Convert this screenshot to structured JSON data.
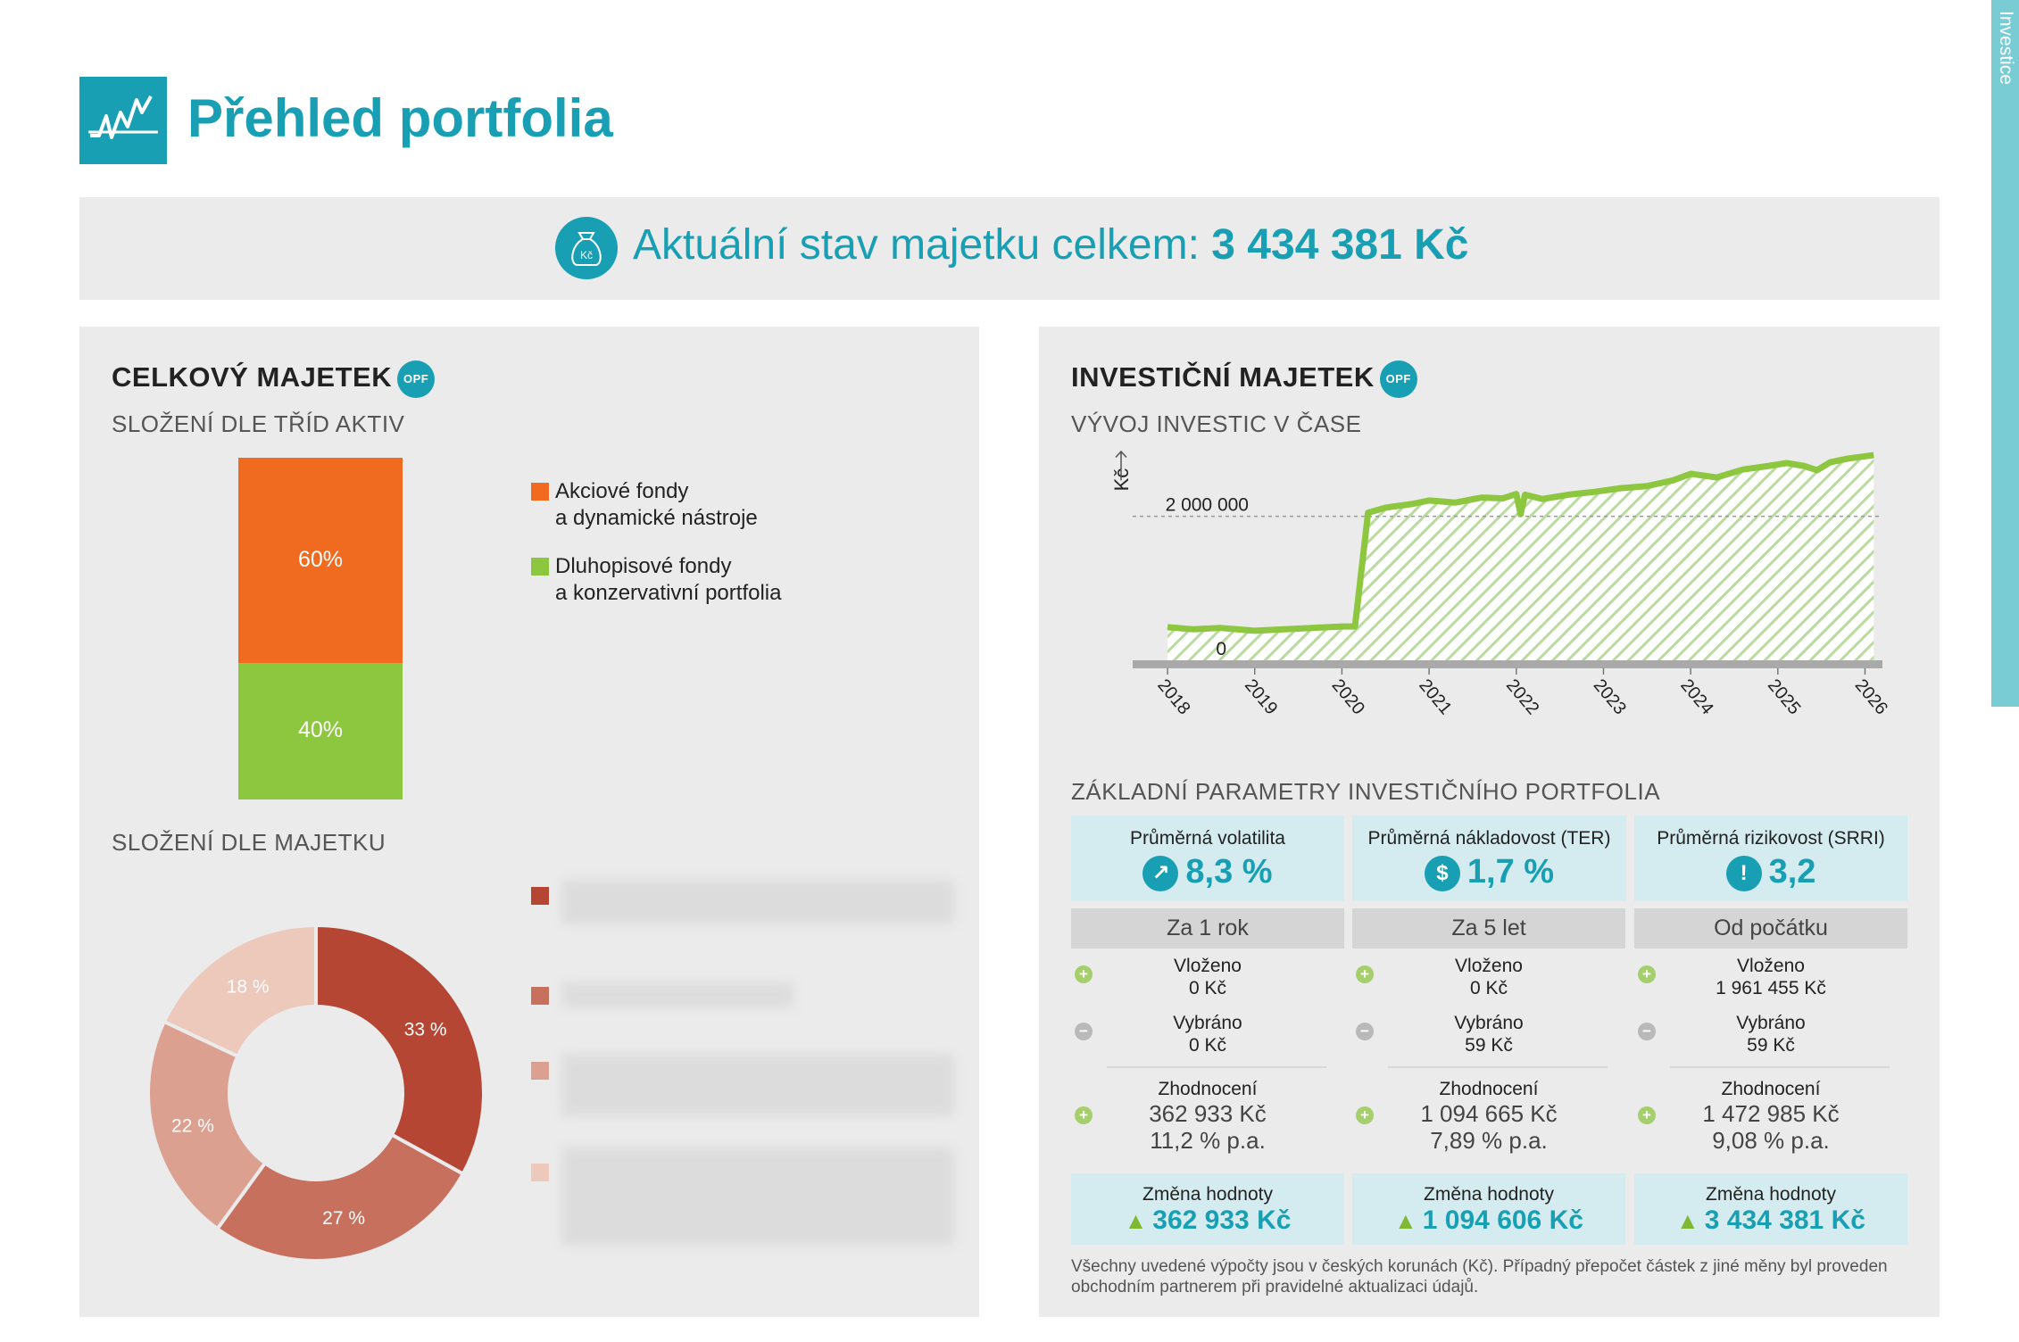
{
  "header": {
    "title": "Přehled portfolia",
    "side_tab": "Investice",
    "logo_icon": "chart-line-icon"
  },
  "total": {
    "label": "Aktuální stav majetku celkem:",
    "value": "3 434 381 Kč",
    "icon": "money-bag-icon",
    "icon_text": "Kč"
  },
  "left_panel": {
    "title": "CELKOVÝ MAJETEK",
    "badge": "OPF",
    "asset_classes_title": "SLOŽENÍ DLE TŘÍD AKTIV",
    "asset_classes": [
      {
        "label_line1": "Akciové fondy",
        "label_line2": "a dynamické nástroje",
        "percent": "60%",
        "value": 60,
        "color": "#f06a20"
      },
      {
        "label_line1": "Dluhopisové fondy",
        "label_line2": "a konzervativní portfolia",
        "percent": "40%",
        "value": 40,
        "color": "#8dc63f"
      }
    ],
    "by_asset_title": "SLOŽENÍ DLE MAJETKU",
    "donut": [
      {
        "label": "33 %",
        "value": 33,
        "color": "#b54633"
      },
      {
        "label": "27 %",
        "value": 27,
        "color": "#c8705e"
      },
      {
        "label": "22 %",
        "value": 22,
        "color": "#dba08f"
      },
      {
        "label": "18 %",
        "value": 18,
        "color": "#ecc9bb"
      }
    ]
  },
  "right_panel": {
    "title": "INVESTIČNÍ MAJETEK",
    "badge": "OPF",
    "growth_title": "VÝVOJ INVESTIC V ČASE",
    "params_title": "ZÁKLADNÍ PARAMETRY INVESTIČNÍHO PORTFOLIA",
    "params": [
      {
        "label": "Průměrná volatilita",
        "value": "8,3 %",
        "icon": "volatility-icon",
        "glyph": "↗"
      },
      {
        "label": "Průměrná nákladovost (TER)",
        "value": "1,7 %",
        "icon": "coins-icon",
        "glyph": "$"
      },
      {
        "label": "Průměrná rizikovost (SRRI)",
        "value": "3,2",
        "icon": "warning-icon",
        "glyph": "!"
      }
    ],
    "periods": [
      {
        "header": "Za 1 rok",
        "deposited_label": "Vloženo",
        "deposited": "0 Kč",
        "withdrawn_label": "Vybráno",
        "withdrawn": "0 Kč",
        "appreciation_label": "Zhodnocení",
        "appreciation": "362 933 Kč",
        "appreciation_pa": "11,2 % p.a.",
        "change_label": "Změna hodnoty",
        "change": "362 933 Kč"
      },
      {
        "header": "Za 5 let",
        "deposited_label": "Vloženo",
        "deposited": "0 Kč",
        "withdrawn_label": "Vybráno",
        "withdrawn": "59 Kč",
        "appreciation_label": "Zhodnocení",
        "appreciation": "1 094 665 Kč",
        "appreciation_pa": "7,89 % p.a.",
        "change_label": "Změna hodnoty",
        "change": "1 094 606 Kč"
      },
      {
        "header": "Od počátku",
        "deposited_label": "Vloženo",
        "deposited": "1 961 455 Kč",
        "withdrawn_label": "Vybráno",
        "withdrawn": "59 Kč",
        "appreciation_label": "Zhodnocení",
        "appreciation": "1 472 985 Kč",
        "appreciation_pa": "9,08 % p.a.",
        "change_label": "Změna hodnoty",
        "change": "3 434 381 Kč"
      }
    ],
    "footnote": "Všechny uvedené výpočty jsou v českých korunách (Kč). Případný přepočet částek z jiné měny byl proveden obchodním partnerem při pravidelné aktualizaci údajů."
  },
  "chart_data": [
    {
      "type": "bar",
      "title": "SLOŽENÍ DLE TŘÍD AKTIV",
      "categories": [
        "Akciové fondy a dynamické nástroje",
        "Dluhopisové fondy a konzervativní portfolia"
      ],
      "values": [
        60,
        40
      ],
      "stacked": true,
      "colors": [
        "#f06a20",
        "#8dc63f"
      ]
    },
    {
      "type": "pie",
      "title": "SLOŽENÍ DLE MAJETKU",
      "donut": true,
      "values": [
        33,
        27,
        22,
        18
      ],
      "labels": [
        "33 %",
        "27 %",
        "22 %",
        "18 %"
      ],
      "colors": [
        "#b54633",
        "#c8705e",
        "#dba08f",
        "#ecc9bb"
      ]
    },
    {
      "type": "area",
      "title": "VÝVOJ INVESTIC V ČASE",
      "ylabel": "Kč",
      "xlabel": "",
      "ylim": [
        0,
        2900000
      ],
      "xlim": [
        2017.6,
        2026.2
      ],
      "x_ticks": [
        "2018",
        "2019",
        "2020",
        "2021",
        "2022",
        "2023",
        "2024",
        "2025",
        "2026"
      ],
      "y_ticks": [
        {
          "value": 0,
          "label": "0"
        },
        {
          "value": 2000000,
          "label": "2 000 000"
        }
      ],
      "reference_line": 2000000,
      "color": "#8dc63f",
      "x": [
        2018.0,
        2018.3,
        2018.6,
        2019.0,
        2019.5,
        2020.0,
        2020.15,
        2020.3,
        2020.5,
        2020.8,
        2021.0,
        2021.3,
        2021.6,
        2021.85,
        2022.0,
        2022.05,
        2022.1,
        2022.3,
        2022.6,
        2022.9,
        2023.2,
        2023.5,
        2023.8,
        2024.0,
        2024.3,
        2024.6,
        2024.9,
        2025.1,
        2025.3,
        2025.45,
        2025.6,
        2025.8,
        2026.1
      ],
      "y": [
        460000,
        430000,
        450000,
        410000,
        440000,
        470000,
        470000,
        2050000,
        2120000,
        2170000,
        2220000,
        2190000,
        2260000,
        2250000,
        2310000,
        2030000,
        2300000,
        2240000,
        2300000,
        2340000,
        2390000,
        2420000,
        2500000,
        2590000,
        2540000,
        2650000,
        2700000,
        2740000,
        2700000,
        2640000,
        2750000,
        2800000,
        2850000
      ]
    }
  ]
}
